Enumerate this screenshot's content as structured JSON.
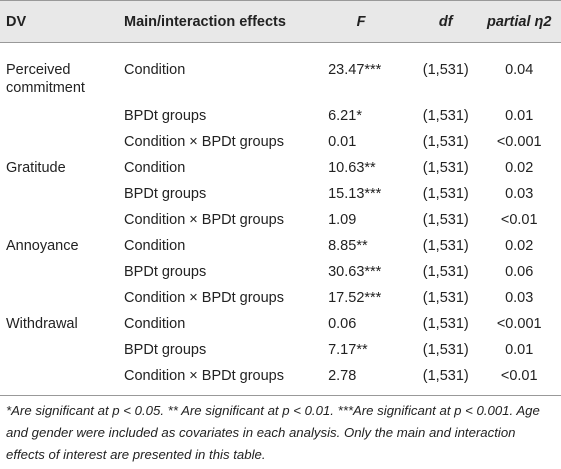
{
  "table": {
    "header": [
      "DV",
      "Main/interaction effects",
      "F",
      "df",
      "partial η2"
    ],
    "rows": [
      {
        "dv": "Perceived commitment",
        "effect": "Condition",
        "F": "23.47***",
        "df": "(1,531)",
        "eta": "0.04"
      },
      {
        "effect": "BPDt groups",
        "F": "6.21*",
        "df": "(1,531)",
        "eta": "0.01"
      },
      {
        "effect": "Condition × BPDt groups",
        "F": "0.01",
        "df": "(1,531)",
        "eta": "<0.001"
      },
      {
        "dv": "Gratitude",
        "effect": "Condition",
        "F": "10.63**",
        "df": "(1,531)",
        "eta": "0.02"
      },
      {
        "effect": "BPDt groups",
        "F": "15.13***",
        "df": "(1,531)",
        "eta": "0.03"
      },
      {
        "effect": "Condition × BPDt groups",
        "F": "1.09",
        "df": "(1,531)",
        "eta": "<0.01"
      },
      {
        "dv": "Annoyance",
        "effect": "Condition",
        "F": "8.85**",
        "df": "(1,531)",
        "eta": "0.02"
      },
      {
        "effect": "BPDt groups",
        "F": "30.63***",
        "df": "(1,531)",
        "eta": "0.06"
      },
      {
        "effect": "Condition × BPDt groups",
        "F": "17.52***",
        "df": "(1,531)",
        "eta": "0.03"
      },
      {
        "dv": "Withdrawal",
        "effect": "Condition",
        "F": "0.06",
        "df": "(1,531)",
        "eta": "<0.001"
      },
      {
        "effect": "BPDt groups",
        "F": "7.17**",
        "df": "(1,531)",
        "eta": "0.01"
      },
      {
        "effect": "Condition × BPDt groups",
        "F": "2.78",
        "df": "(1,531)",
        "eta": "<0.01"
      }
    ],
    "footnote": "*Are significant at p < 0.05. ** Are significant at p < 0.01. ***Are significant at p < 0.001. Age and gender were included as covariates in each analysis. Only the main and interaction effects of interest are presented in this table."
  }
}
